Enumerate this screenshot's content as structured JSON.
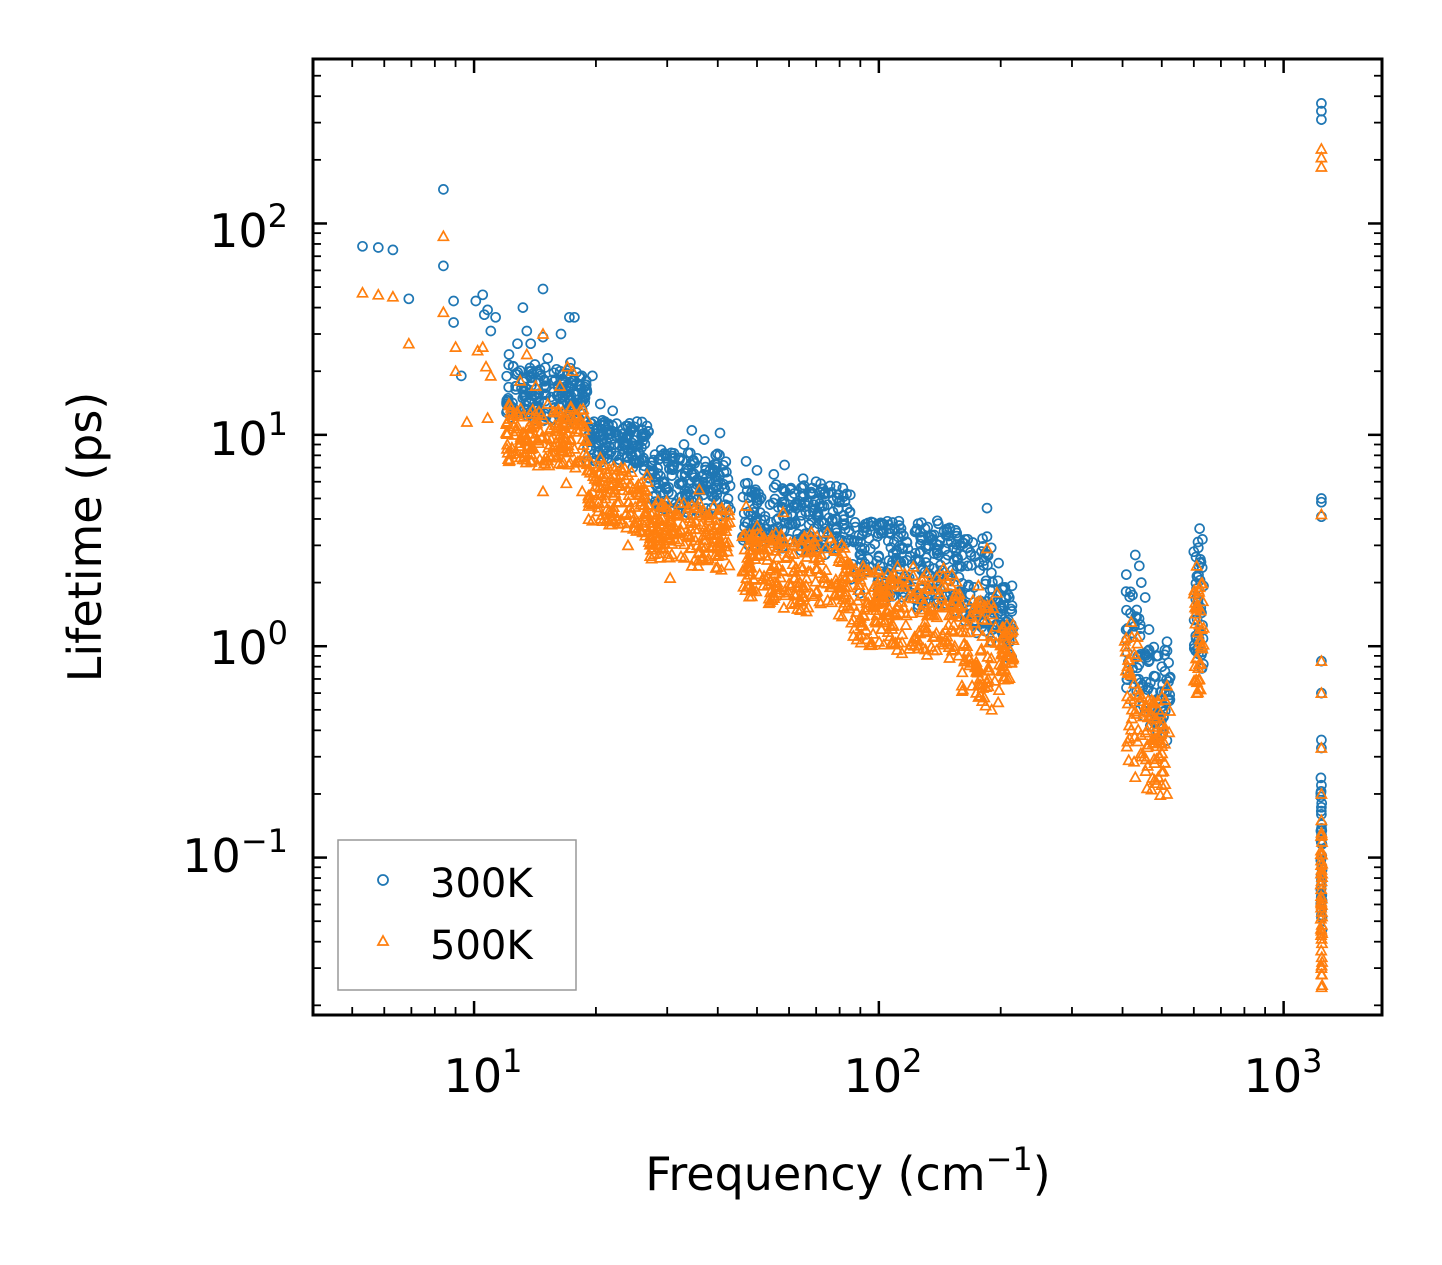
{
  "chart_data": {
    "type": "scatter",
    "title": "",
    "xlabel": "Frequency (cm",
    "xlabel_exp": "−1",
    "xlabel_close": ")",
    "ylabel": "Lifetime (ps)",
    "xscale": "log",
    "yscale": "log",
    "xlim": [
      4.0,
      1750
    ],
    "ylim": [
      0.018,
      600
    ],
    "x_ticks": [
      {
        "value": 10,
        "base": "10",
        "exp": "1"
      },
      {
        "value": 100,
        "base": "10",
        "exp": "2"
      },
      {
        "value": 1000,
        "base": "10",
        "exp": "3"
      }
    ],
    "y_ticks": [
      {
        "value": 0.1,
        "base": "10",
        "exp": "−1"
      },
      {
        "value": 1,
        "base": "10",
        "exp": "0"
      },
      {
        "value": 10,
        "base": "10",
        "exp": "1"
      },
      {
        "value": 100,
        "base": "10",
        "exp": "2"
      }
    ],
    "legend_position": "lower-left",
    "series": [
      {
        "name": "300K",
        "marker": "circle",
        "color": "#1f77b4",
        "points": [
          [
            5.3,
            78
          ],
          [
            5.8,
            77
          ],
          [
            6.3,
            75
          ],
          [
            6.9,
            44
          ],
          [
            8.4,
            145
          ],
          [
            8.4,
            63
          ],
          [
            8.9,
            43
          ],
          [
            8.9,
            34
          ],
          [
            9.3,
            19
          ],
          [
            10.1,
            43
          ],
          [
            10.5,
            46
          ],
          [
            10.6,
            37
          ],
          [
            10.8,
            39
          ],
          [
            11.3,
            36
          ],
          [
            11.0,
            31
          ],
          [
            12.2,
            24
          ],
          [
            12.5,
            21
          ],
          [
            12.8,
            27
          ],
          [
            13.2,
            40
          ],
          [
            13.5,
            31
          ],
          [
            13.8,
            27
          ],
          [
            14.3,
            20
          ],
          [
            14.8,
            49
          ],
          [
            14.8,
            29
          ],
          [
            15.2,
            23
          ],
          [
            15.8,
            18
          ],
          [
            16.4,
            30
          ],
          [
            17.2,
            36
          ],
          [
            17.7,
            36
          ],
          [
            17.3,
            22
          ],
          [
            18.3,
            17
          ],
          [
            19.0,
            16
          ],
          [
            19.6,
            19
          ],
          [
            20.5,
            14
          ],
          [
            22.0,
            13
          ],
          [
            24.0,
            11
          ],
          [
            26.0,
            11.5
          ],
          [
            29.0,
            8.5
          ],
          [
            33.0,
            9
          ],
          [
            34.5,
            10.5
          ],
          [
            37.0,
            9.5
          ],
          [
            40.5,
            10.2
          ],
          [
            47.0,
            7.5
          ],
          [
            50.0,
            6.8
          ],
          [
            55.0,
            6.5
          ],
          [
            58.5,
            7.2
          ],
          [
            65.0,
            6.2
          ],
          [
            70.0,
            6.0
          ],
          [
            85.0,
            5.2
          ],
          [
            105.0,
            3.9
          ],
          [
            125.0,
            3.8
          ],
          [
            150.0,
            3.6
          ],
          [
            185.0,
            4.5
          ],
          [
            185.0,
            3.3
          ],
          [
            205.0,
            1.9
          ],
          [
            210.0,
            1.7
          ],
          [
            212.0,
            1.5
          ],
          [
            430.0,
            2.7
          ],
          [
            440.0,
            2.4
          ],
          [
            445.0,
            2.0
          ],
          [
            455.0,
            1.7
          ],
          [
            465.0,
            1.2
          ],
          [
            490.0,
            0.9
          ],
          [
            500.0,
            0.8
          ],
          [
            515.0,
            1.05
          ],
          [
            515.0,
            0.95
          ],
          [
            600.0,
            2.8
          ],
          [
            620.0,
            3.6
          ],
          [
            630.0,
            3.2
          ],
          [
            625.0,
            2.5
          ],
          [
            1240.0,
            370
          ],
          [
            1240.0,
            340
          ],
          [
            1240.0,
            310
          ],
          [
            1240.0,
            5.0
          ],
          [
            1240.0,
            4.8
          ],
          [
            1240.0,
            4.1
          ],
          [
            1240.0,
            0.85
          ],
          [
            1240.0,
            0.6
          ],
          [
            1240.0,
            0.36
          ],
          [
            1240.0,
            0.33
          ],
          [
            1240.0,
            0.22
          ],
          [
            1240.0,
            0.16
          ]
        ],
        "bands": [
          {
            "x": [
              12,
              19
            ],
            "y_low": 12,
            "y_high": 22
          },
          {
            "x": [
              19,
              27
            ],
            "y_low": 7.5,
            "y_high": 12
          },
          {
            "x": [
              27,
              43
            ],
            "y_low": 4.5,
            "y_high": 8.5
          },
          {
            "x": [
              46,
              85
            ],
            "y_low": 3.0,
            "y_high": 6.0
          },
          {
            "x": [
              85,
              160
            ],
            "y_low": 1.7,
            "y_high": 4.0
          },
          {
            "x": [
              160,
              200
            ],
            "y_low": 1.2,
            "y_high": 3.4
          },
          {
            "x": [
              200,
              215
            ],
            "y_low": 0.9,
            "y_high": 2.0
          },
          {
            "x": [
              405,
              445
            ],
            "y_low": 0.6,
            "y_high": 2.3
          },
          {
            "x": [
              445,
              525
            ],
            "y_low": 0.4,
            "y_high": 1.0
          },
          {
            "x": [
              600,
              635
            ],
            "y_low": 0.9,
            "y_high": 3.2
          },
          {
            "x": [
              1235,
              1245
            ],
            "y_low": 0.05,
            "y_high": 0.25
          }
        ]
      },
      {
        "name": "500K",
        "marker": "triangle",
        "color": "#ff7f0e",
        "points": [
          [
            5.3,
            47
          ],
          [
            5.8,
            46
          ],
          [
            6.3,
            45
          ],
          [
            6.9,
            27
          ],
          [
            8.4,
            87
          ],
          [
            8.4,
            38
          ],
          [
            9.0,
            26
          ],
          [
            9.0,
            20
          ],
          [
            9.6,
            11.5
          ],
          [
            10.2,
            25
          ],
          [
            10.5,
            26
          ],
          [
            10.7,
            21
          ],
          [
            11.0,
            19
          ],
          [
            10.8,
            12
          ],
          [
            12.2,
            14
          ],
          [
            13.0,
            18
          ],
          [
            13.5,
            24
          ],
          [
            14.2,
            17
          ],
          [
            14.8,
            30
          ],
          [
            15.2,
            14
          ],
          [
            14.8,
            5.4
          ],
          [
            15.5,
            9.5
          ],
          [
            16.3,
            17
          ],
          [
            17.0,
            21
          ],
          [
            17.5,
            20
          ],
          [
            16.9,
            5.9
          ],
          [
            18.5,
            5.4
          ],
          [
            20.5,
            7.8
          ],
          [
            22.5,
            4.0
          ],
          [
            24.0,
            3.0
          ],
          [
            26.0,
            5.0
          ],
          [
            28.0,
            3.3
          ],
          [
            30.5,
            2.1
          ],
          [
            34.5,
            2.4
          ],
          [
            36.0,
            5.5
          ],
          [
            40.5,
            3.0
          ],
          [
            47.0,
            4.6
          ],
          [
            50.0,
            3.7
          ],
          [
            55.0,
            3.2
          ],
          [
            58.0,
            4.3
          ],
          [
            62.0,
            2.1
          ],
          [
            70.0,
            1.8
          ],
          [
            80.0,
            1.8
          ],
          [
            100.0,
            1.9
          ],
          [
            130.0,
            1.3
          ],
          [
            165.0,
            1.0
          ],
          [
            170.0,
            0.65
          ],
          [
            180.0,
            0.55
          ],
          [
            185.0,
            2.9
          ],
          [
            190.0,
            0.5
          ],
          [
            210.0,
            0.9
          ],
          [
            420.0,
            1.3
          ],
          [
            430.0,
            0.24
          ],
          [
            445.0,
            0.3
          ],
          [
            460.0,
            0.4
          ],
          [
            480.0,
            0.28
          ],
          [
            500.0,
            0.22
          ],
          [
            515.0,
            0.65
          ],
          [
            515.0,
            0.2
          ],
          [
            610.0,
            2.4
          ],
          [
            620.0,
            1.9
          ],
          [
            610.0,
            0.6
          ],
          [
            1240.0,
            225
          ],
          [
            1240.0,
            205
          ],
          [
            1240.0,
            185
          ],
          [
            1240.0,
            4.2
          ],
          [
            1240.0,
            0.85
          ],
          [
            1240.0,
            0.6
          ],
          [
            1240.0,
            0.33
          ],
          [
            1240.0,
            0.2
          ],
          [
            1240.0,
            0.15
          ],
          [
            1240.0,
            0.03
          ],
          [
            1240.0,
            0.028
          ]
        ],
        "bands": [
          {
            "x": [
              12,
              19
            ],
            "y_low": 7.5,
            "y_high": 14
          },
          {
            "x": [
              19,
              27
            ],
            "y_low": 3.8,
            "y_high": 7.5
          },
          {
            "x": [
              27,
              43
            ],
            "y_low": 2.6,
            "y_high": 5.0
          },
          {
            "x": [
              46,
              85
            ],
            "y_low": 1.6,
            "y_high": 3.5
          },
          {
            "x": [
              85,
              160
            ],
            "y_low": 1.0,
            "y_high": 2.5
          },
          {
            "x": [
              160,
              200
            ],
            "y_low": 0.6,
            "y_high": 2.0
          },
          {
            "x": [
              200,
              215
            ],
            "y_low": 0.7,
            "y_high": 1.3
          },
          {
            "x": [
              405,
              445
            ],
            "y_low": 0.3,
            "y_high": 1.3
          },
          {
            "x": [
              445,
              525
            ],
            "y_low": 0.22,
            "y_high": 0.6
          },
          {
            "x": [
              600,
              635
            ],
            "y_low": 0.65,
            "y_high": 2.2
          },
          {
            "x": [
              1235,
              1245
            ],
            "y_low": 0.028,
            "y_high": 0.15
          }
        ]
      }
    ]
  }
}
